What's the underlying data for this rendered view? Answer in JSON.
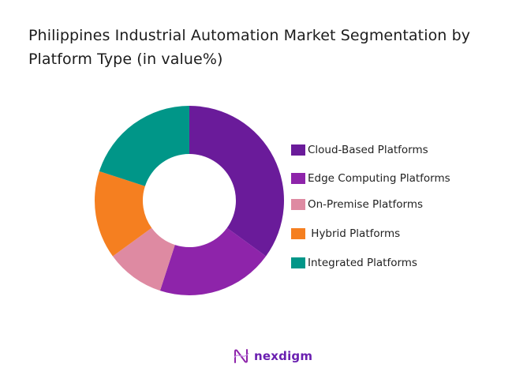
{
  "title": "Philippines Industrial Automation Market Segmentation by Platform Type (in value%)",
  "chart_data": {
    "type": "pie",
    "subtype": "donut",
    "title": "Philippines Industrial Automation Market Segmentation by Platform Type (in value%)",
    "categories": [
      "Cloud-Based Platforms",
      "Edge Computing Platforms",
      "On-Premise Platforms",
      "Hybrid Platforms",
      "Integrated Platforms"
    ],
    "values": [
      35,
      20,
      10,
      15,
      20
    ],
    "colors": [
      "#6a1b9a",
      "#8e24aa",
      "#de8aa2",
      "#f57f20",
      "#009688"
    ],
    "start_angle": "12 o'clock, clockwise",
    "legend_position": "right",
    "data_labels": false
  },
  "legend": {
    "items": [
      {
        "label": "Cloud-Based Platforms",
        "color": "#6a1b9a"
      },
      {
        "label": "Edge Computing Platforms",
        "color": "#8e24aa"
      },
      {
        "label": "On-Premise Platforms",
        "color": "#de8aa2"
      },
      {
        "label": " Hybrid Platforms",
        "color": "#f57f20"
      },
      {
        "label": "Integrated Platforms",
        "color": "#009688"
      }
    ]
  },
  "logo": {
    "text": "nexdigm"
  }
}
